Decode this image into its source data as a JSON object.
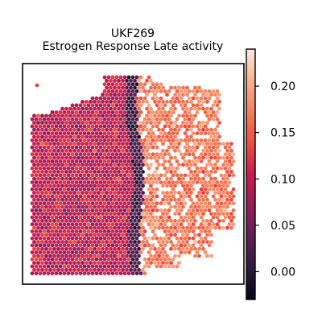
{
  "chart_data": {
    "type": "scatter",
    "title": "UKF269\nEstrogen Response Late activity",
    "title_lines": [
      "UKF269",
      "Estrogen Response Late activity"
    ],
    "xlabel": "",
    "ylabel": "",
    "grid": false,
    "frame_ticks": false,
    "colormap": "rocket",
    "colorbar": {
      "range": [
        -0.03,
        0.24
      ],
      "ticks": [
        0.0,
        0.05,
        0.1,
        0.15,
        0.2
      ],
      "tick_labels": [
        "0.00",
        "0.05",
        "0.10",
        "0.15",
        "0.20"
      ]
    },
    "regions": [
      {
        "name": "left tissue region",
        "mean_value": 0.1
      },
      {
        "name": "central low-activity band",
        "mean_value": 0.0
      },
      {
        "name": "right high-activity region",
        "mean_value": 0.17
      }
    ]
  },
  "colors": {
    "background": "#ffffff",
    "frame": "#000000",
    "colormap_stops": [
      "#03051a",
      "#2d1a3d",
      "#611f53",
      "#961c5b",
      "#cb1b4f",
      "#ef4e3c",
      "#f5805b",
      "#f6b38e",
      "#faebdd"
    ]
  }
}
